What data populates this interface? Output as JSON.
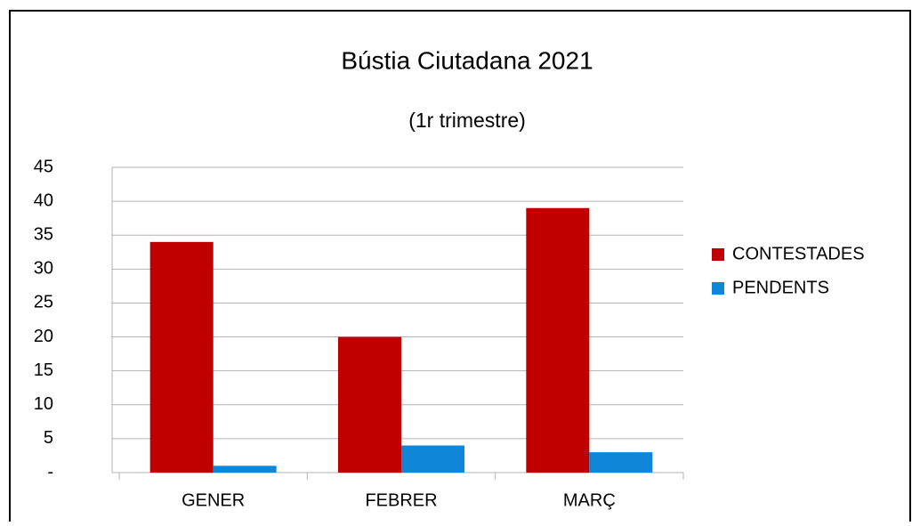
{
  "chart_data": {
    "type": "bar",
    "title": "Bústia Ciutadana 2021",
    "subtitle": "(1r trimestre)",
    "categories": [
      "GENER",
      "FEBRER",
      "MARÇ"
    ],
    "series": [
      {
        "name": "CONTESTADES",
        "color": "#c00000",
        "values": [
          34,
          20,
          39
        ]
      },
      {
        "name": "PENDENTS",
        "color": "#0f86d8",
        "values": [
          1,
          4,
          3
        ]
      }
    ],
    "ylim": [
      0,
      45
    ],
    "yticks": [
      {
        "value": 0,
        "label": "-"
      },
      5,
      10,
      15,
      20,
      25,
      30,
      35,
      40,
      45
    ],
    "grid": true,
    "legend": "right"
  }
}
